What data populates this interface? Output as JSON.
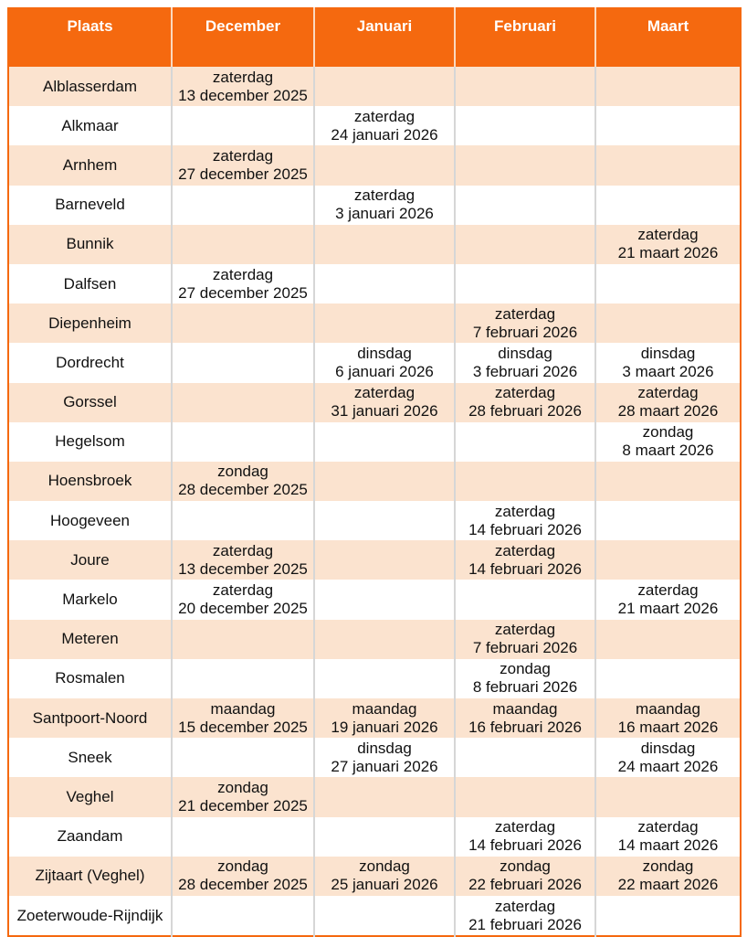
{
  "colors": {
    "header_bg": "#f5690f",
    "header_text": "#ffffff",
    "band_row_bg": "#fbe3cf",
    "plain_row_bg": "#ffffff",
    "outer_border": "#f5690f",
    "gridline": "#d6d6d6",
    "body_text": "#111111"
  },
  "table": {
    "header": [
      "Plaats",
      "December",
      "Januari",
      "Februari",
      "Maart"
    ],
    "rows": [
      {
        "plaats": "Alblasserdam",
        "cells": [
          {
            "day": "zaterdag",
            "date": "13 december 2025"
          },
          null,
          null,
          null
        ]
      },
      {
        "plaats": "Alkmaar",
        "cells": [
          null,
          {
            "day": "zaterdag",
            "date": "24 januari 2026"
          },
          null,
          null
        ]
      },
      {
        "plaats": "Arnhem",
        "cells": [
          {
            "day": "zaterdag",
            "date": "27 december 2025"
          },
          null,
          null,
          null
        ]
      },
      {
        "plaats": "Barneveld",
        "cells": [
          null,
          {
            "day": "zaterdag",
            "date": "3 januari 2026"
          },
          null,
          null
        ]
      },
      {
        "plaats": "Bunnik",
        "cells": [
          null,
          null,
          null,
          {
            "day": "zaterdag",
            "date": "21 maart 2026"
          }
        ]
      },
      {
        "plaats": "Dalfsen",
        "cells": [
          {
            "day": "zaterdag",
            "date": "27 december 2025"
          },
          null,
          null,
          null
        ]
      },
      {
        "plaats": "Diepenheim",
        "cells": [
          null,
          null,
          {
            "day": "zaterdag",
            "date": "7 februari 2026"
          },
          null
        ]
      },
      {
        "plaats": "Dordrecht",
        "cells": [
          null,
          {
            "day": "dinsdag",
            "date": "6 januari 2026"
          },
          {
            "day": "dinsdag",
            "date": "3 februari 2026"
          },
          {
            "day": "dinsdag",
            "date": "3 maart 2026"
          }
        ]
      },
      {
        "plaats": "Gorssel",
        "cells": [
          null,
          {
            "day": "zaterdag",
            "date": "31 januari 2026"
          },
          {
            "day": "zaterdag",
            "date": "28 februari 2026"
          },
          {
            "day": "zaterdag",
            "date": "28 maart 2026"
          }
        ]
      },
      {
        "plaats": "Hegelsom",
        "cells": [
          null,
          null,
          null,
          {
            "day": "zondag",
            "date": "8 maart 2026"
          }
        ]
      },
      {
        "plaats": "Hoensbroek",
        "cells": [
          {
            "day": "zondag",
            "date": "28 december 2025"
          },
          null,
          null,
          null
        ]
      },
      {
        "plaats": "Hoogeveen",
        "cells": [
          null,
          null,
          {
            "day": "zaterdag",
            "date": "14 februari 2026"
          },
          null
        ]
      },
      {
        "plaats": "Joure",
        "cells": [
          {
            "day": "zaterdag",
            "date": "13 december 2025"
          },
          null,
          {
            "day": "zaterdag",
            "date": "14 februari 2026"
          },
          null
        ]
      },
      {
        "plaats": "Markelo",
        "cells": [
          {
            "day": "zaterdag",
            "date": "20 december 2025"
          },
          null,
          null,
          {
            "day": "zaterdag",
            "date": "21 maart 2026"
          }
        ]
      },
      {
        "plaats": "Meteren",
        "cells": [
          null,
          null,
          {
            "day": "zaterdag",
            "date": "7 februari 2026"
          },
          null
        ]
      },
      {
        "plaats": "Rosmalen",
        "cells": [
          null,
          null,
          {
            "day": "zondag",
            "date": "8 februari 2026"
          },
          null
        ]
      },
      {
        "plaats": "Santpoort-Noord",
        "cells": [
          {
            "day": "maandag",
            "date": "15 december 2025"
          },
          {
            "day": "maandag",
            "date": "19 januari 2026"
          },
          {
            "day": "maandag",
            "date": "16 februari 2026"
          },
          {
            "day": "maandag",
            "date": "16 maart 2026"
          }
        ]
      },
      {
        "plaats": "Sneek",
        "cells": [
          null,
          {
            "day": "dinsdag",
            "date": "27 januari 2026"
          },
          null,
          {
            "day": "dinsdag",
            "date": "24 maart 2026"
          }
        ]
      },
      {
        "plaats": "Veghel",
        "cells": [
          {
            "day": "zondag",
            "date": "21 december 2025"
          },
          null,
          null,
          null
        ]
      },
      {
        "plaats": "Zaandam",
        "cells": [
          null,
          null,
          {
            "day": "zaterdag",
            "date": "14 februari 2026"
          },
          {
            "day": "zaterdag",
            "date": "14 maart 2026"
          }
        ]
      },
      {
        "plaats": "Zijtaart (Veghel)",
        "cells": [
          {
            "day": "zondag",
            "date": "28 december 2025"
          },
          {
            "day": "zondag",
            "date": "25 januari 2026"
          },
          {
            "day": "zondag",
            "date": "22 februari 2026"
          },
          {
            "day": "zondag",
            "date": "22 maart 2026"
          }
        ]
      },
      {
        "plaats": "Zoeterwoude-Rijndijk",
        "cells": [
          null,
          null,
          {
            "day": "zaterdag",
            "date": "21 februari 2026"
          },
          null
        ]
      }
    ]
  }
}
